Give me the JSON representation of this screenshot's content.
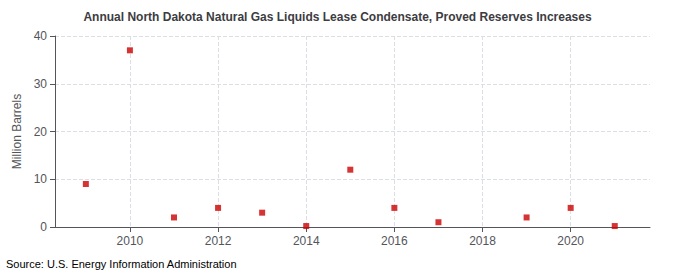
{
  "chart_data": {
    "type": "scatter",
    "title": "Annual North Dakota Natural Gas Liquids Lease Condensate, Proved Reserves Increases",
    "ylabel": "Million Barrels",
    "annotation": "Source: U.S. Energy Information Administration",
    "x": [
      2009,
      2010,
      2011,
      2012,
      2013,
      2014,
      2015,
      2016,
      2017,
      2019,
      2020,
      2021
    ],
    "values": [
      9.0,
      37.0,
      2.0,
      4.0,
      3.0,
      0.2,
      12.0,
      4.0,
      1.0,
      2.0,
      4.0,
      0.2
    ],
    "color": "#CC0000",
    "marker": "square",
    "xlim": [
      2008.3,
      2021.8
    ],
    "ylim": [
      0,
      40
    ],
    "xticks": [
      2010,
      2012,
      2014,
      2016,
      2018,
      2020
    ],
    "yticks": [
      0,
      10,
      20,
      30,
      40
    ],
    "grid": true
  }
}
